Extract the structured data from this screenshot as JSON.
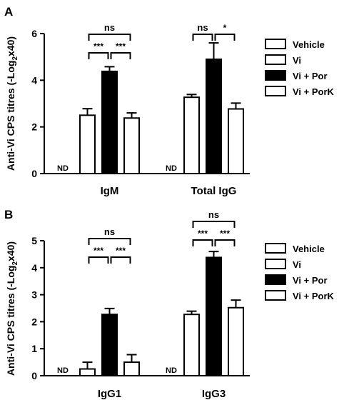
{
  "chart_data": [
    {
      "panel_label": "A",
      "type": "bar",
      "ylabel_main": "Anti-Vi CPS titres (-Log",
      "ylabel_sub": "2",
      "ylabel_end": "x40)",
      "ylim": [
        0,
        6
      ],
      "yticks": [
        "0",
        "2",
        "4",
        "6"
      ],
      "categories": [
        "IgM",
        "Total IgG"
      ],
      "series": [
        {
          "name": "Vehicle",
          "values": [
            null,
            null
          ],
          "errors": [
            null,
            null
          ],
          "color": "#ffffff"
        },
        {
          "name": "Vi",
          "values": [
            2.5,
            3.27
          ],
          "errors": [
            0.28,
            0.12
          ],
          "color": "#ffffff"
        },
        {
          "name": "Vi + Por",
          "values": [
            4.38,
            4.9
          ],
          "errors": [
            0.2,
            0.7
          ],
          "color": "#000000"
        },
        {
          "name": "Vi + PorK",
          "values": [
            2.38,
            2.77
          ],
          "errors": [
            0.22,
            0.25
          ],
          "color": "#ffffff"
        }
      ],
      "nd_label": "ND",
      "significance": [
        {
          "group": 0,
          "from": 1,
          "to": 2,
          "label": "***",
          "level": 0
        },
        {
          "group": 0,
          "from": 2,
          "to": 3,
          "label": "***",
          "level": 0
        },
        {
          "group": 0,
          "from": 1,
          "to": 3,
          "label": "ns",
          "level": 1
        },
        {
          "group": 1,
          "from": 1,
          "to": 2,
          "label": "ns",
          "level": 1
        },
        {
          "group": 1,
          "from": 2,
          "to": 3,
          "label": "*",
          "level": 1
        }
      ]
    },
    {
      "panel_label": "B",
      "type": "bar",
      "ylabel_main": "Anti-Vi CPS titres (-Log",
      "ylabel_sub": "2",
      "ylabel_end": "x40)",
      "ylim": [
        0,
        5
      ],
      "yticks": [
        "0",
        "1",
        "2",
        "3",
        "4",
        "5"
      ],
      "categories": [
        "IgG1",
        "IgG3"
      ],
      "series": [
        {
          "name": "Vehicle",
          "values": [
            null,
            null
          ],
          "errors": [
            null,
            null
          ],
          "color": "#ffffff"
        },
        {
          "name": "Vi",
          "values": [
            0.25,
            2.27
          ],
          "errors": [
            0.25,
            0.12
          ],
          "color": "#ffffff"
        },
        {
          "name": "Vi + Por",
          "values": [
            2.27,
            4.38
          ],
          "errors": [
            0.22,
            0.22
          ],
          "color": "#000000"
        },
        {
          "name": "Vi + PorK",
          "values": [
            0.5,
            2.52
          ],
          "errors": [
            0.28,
            0.28
          ],
          "color": "#ffffff"
        }
      ],
      "nd_label": "ND",
      "significance": [
        {
          "group": 0,
          "from": 1,
          "to": 2,
          "label": "***",
          "level": 0
        },
        {
          "group": 0,
          "from": 2,
          "to": 3,
          "label": "***",
          "level": 0
        },
        {
          "group": 0,
          "from": 1,
          "to": 3,
          "label": "ns",
          "level": 1
        },
        {
          "group": 1,
          "from": 1,
          "to": 2,
          "label": "***",
          "level": 0
        },
        {
          "group": 1,
          "from": 2,
          "to": 3,
          "label": "***",
          "level": 0
        },
        {
          "group": 1,
          "from": 1,
          "to": 3,
          "label": "ns",
          "level": 1
        }
      ]
    }
  ]
}
